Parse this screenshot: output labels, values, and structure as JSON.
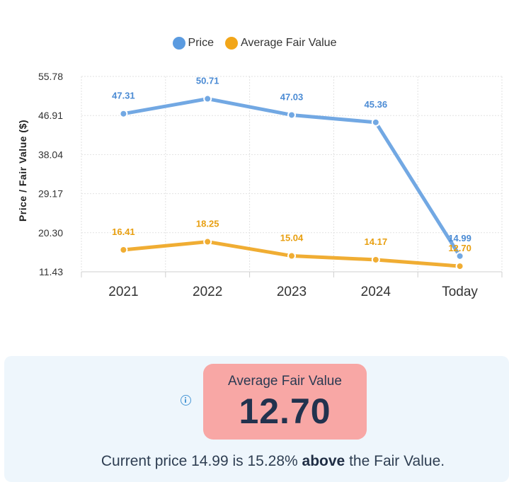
{
  "legend": {
    "price_label": "Price",
    "fair_label": "Average Fair Value",
    "price_color": "#5b9be0",
    "fair_color": "#f2a619"
  },
  "chart_data": {
    "type": "line",
    "categories": [
      "2021",
      "2022",
      "2023",
      "2024",
      "Today"
    ],
    "series": [
      {
        "name": "Price",
        "values": [
          47.31,
          50.71,
          47.03,
          45.36,
          14.99
        ],
        "color": "#72a8e3",
        "label_color": "#4b8bd4"
      },
      {
        "name": "Average Fair Value",
        "values": [
          16.41,
          18.25,
          15.04,
          14.17,
          12.7
        ],
        "color": "#f0ad33",
        "label_color": "#e89f10"
      }
    ],
    "ylabel": "Price / Fair Value ($)",
    "yticks": [
      "55.78",
      "46.91",
      "38.04",
      "29.17",
      "20.30",
      "11.43"
    ],
    "ylim": [
      11.43,
      55.78
    ],
    "grid": true,
    "legend_position": "top"
  },
  "panel": {
    "fv_title": "Average Fair Value",
    "fv_value": "12.70",
    "summary_pre": "Current price 14.99 is 15.28% ",
    "summary_bold": "above",
    "summary_post": " the Fair Value.",
    "box_color": "#f8a7a5",
    "info_icon": "info-icon"
  }
}
